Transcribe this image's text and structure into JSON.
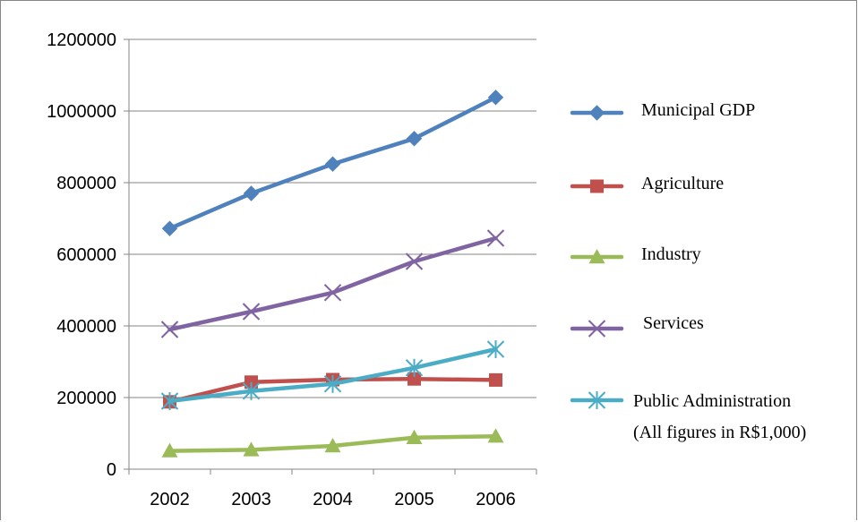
{
  "chart_data": {
    "type": "line",
    "categories": [
      "2002",
      "2003",
      "2004",
      "2005",
      "2006"
    ],
    "ylim": [
      0,
      1200000
    ],
    "yticks": [
      "0",
      "200000",
      "400000",
      "600000",
      "800000",
      "1000000",
      "1200000"
    ],
    "grid": true,
    "legend_position": "right",
    "series": [
      {
        "name": "Municipal GDP",
        "values": [
          672000,
          770000,
          852000,
          923000,
          1038000
        ],
        "color": "#4F81BD",
        "marker": "diamond"
      },
      {
        "name": "Agriculture",
        "values": [
          188000,
          243000,
          250000,
          252000,
          249000
        ],
        "color": "#C0504D",
        "marker": "square"
      },
      {
        "name": "Industry",
        "values": [
          51000,
          54000,
          65000,
          88000,
          92000
        ],
        "color": "#9BBB59",
        "marker": "triangle"
      },
      {
        "name": "Services",
        "values": [
          390000,
          440000,
          493000,
          580000,
          645000
        ],
        "color": "#8064A2",
        "marker": "x"
      },
      {
        "name": "Public Administration",
        "values": [
          190000,
          218000,
          238000,
          283000,
          335000
        ],
        "color": "#4BACC6",
        "marker": "star"
      }
    ],
    "annotation": "(All figures in R$1,000)"
  }
}
